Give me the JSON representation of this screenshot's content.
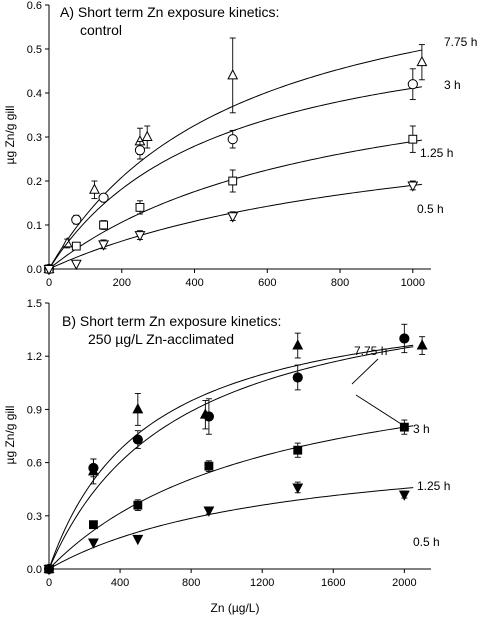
{
  "chart_data": [
    {
      "type": "scatter",
      "title": "A) Short term Zn exposure kinetics:",
      "subtitle": "control",
      "ylabel": "µg Zn/g gill",
      "xlabel": "",
      "xlim": [
        0,
        1050
      ],
      "ylim": [
        0,
        0.6
      ],
      "xticks": [
        0,
        200,
        400,
        600,
        800,
        1000
      ],
      "yticks": [
        0.0,
        0.1,
        0.2,
        0.3,
        0.4,
        0.5,
        0.6
      ],
      "marker_fill": "open",
      "grid": false,
      "legend": "none",
      "series": [
        {
          "name": "7.75 h",
          "marker": "triangle-up",
          "fit": {
            "vmax": 0.75,
            "km": 520
          },
          "points": [
            {
              "x": 0,
              "y": 0.0,
              "err": 0
            },
            {
              "x": 50,
              "y": 0.058,
              "err": 0.01
            },
            {
              "x": 125,
              "y": 0.18,
              "err": 0.02
            },
            {
              "x": 250,
              "y": 0.29,
              "err": 0.03
            },
            {
              "x": 270,
              "y": 0.3,
              "err": 0.025
            },
            {
              "x": 505,
              "y": 0.44,
              "err": 0.085
            },
            {
              "x": 1025,
              "y": 0.47,
              "err": 0.04
            }
          ]
        },
        {
          "name": "3 h",
          "marker": "circle",
          "fit": {
            "vmax": 0.6,
            "km": 460
          },
          "points": [
            {
              "x": 0,
              "y": 0.0,
              "err": 0
            },
            {
              "x": 75,
              "y": 0.112,
              "err": 0.01
            },
            {
              "x": 150,
              "y": 0.162,
              "err": 0
            },
            {
              "x": 250,
              "y": 0.27,
              "err": 0.02
            },
            {
              "x": 505,
              "y": 0.295,
              "err": 0.02
            },
            {
              "x": 1000,
              "y": 0.42,
              "err": 0.035
            }
          ]
        },
        {
          "name": "1.25 h",
          "marker": "square",
          "fit": {
            "vmax": 0.51,
            "km": 760
          },
          "points": [
            {
              "x": 0,
              "y": 0.0,
              "err": 0
            },
            {
              "x": 75,
              "y": 0.052,
              "err": 0.008
            },
            {
              "x": 150,
              "y": 0.1,
              "err": 0.01
            },
            {
              "x": 250,
              "y": 0.14,
              "err": 0.015
            },
            {
              "x": 505,
              "y": 0.2,
              "err": 0.025
            },
            {
              "x": 1000,
              "y": 0.295,
              "err": 0.03
            }
          ]
        },
        {
          "name": "0.5 h",
          "marker": "triangle-down",
          "fit": {
            "vmax": 0.38,
            "km": 1000
          },
          "points": [
            {
              "x": 0,
              "y": 0.0,
              "err": 0
            },
            {
              "x": 75,
              "y": 0.012,
              "err": 0
            },
            {
              "x": 150,
              "y": 0.056,
              "err": 0.01
            },
            {
              "x": 250,
              "y": 0.077,
              "err": 0.01
            },
            {
              "x": 505,
              "y": 0.12,
              "err": 0.01
            },
            {
              "x": 1000,
              "y": 0.19,
              "err": 0.01
            }
          ]
        }
      ]
    },
    {
      "type": "scatter",
      "title": "B) Short term Zn exposure kinetics:",
      "subtitle": "250 µg/L Zn-acclimated",
      "ylabel": "µg Zn/g gill",
      "xlabel": "Zn (µg/L)",
      "xlim": [
        0,
        2150
      ],
      "ylim": [
        0,
        1.5
      ],
      "xticks": [
        0,
        400,
        800,
        1200,
        1600,
        2000
      ],
      "yticks": [
        0.0,
        0.3,
        0.6,
        0.9,
        1.2,
        1.5
      ],
      "marker_fill": "filled",
      "grid": false,
      "legend": "none",
      "series": [
        {
          "name": "7.75 h",
          "marker": "triangle-up",
          "fit": {
            "vmax": 1.6,
            "km": 550
          },
          "points": [
            {
              "x": 0,
              "y": 0.0,
              "err": 0
            },
            {
              "x": 250,
              "y": 0.55,
              "err": 0.07
            },
            {
              "x": 500,
              "y": 0.9,
              "err": 0.09
            },
            {
              "x": 880,
              "y": 0.87,
              "err": 0.08
            },
            {
              "x": 1400,
              "y": 1.26,
              "err": 0.07
            },
            {
              "x": 2100,
              "y": 1.26,
              "err": 0.05
            }
          ]
        },
        {
          "name": "3 h",
          "marker": "circle",
          "fit": {
            "vmax": 1.7,
            "km": 730
          },
          "points": [
            {
              "x": 0,
              "y": 0.0,
              "err": 0
            },
            {
              "x": 250,
              "y": 0.57,
              "err": 0.05
            },
            {
              "x": 500,
              "y": 0.73,
              "err": 0.05
            },
            {
              "x": 900,
              "y": 0.86,
              "err": 0.1
            },
            {
              "x": 1400,
              "y": 1.08,
              "err": 0.07
            },
            {
              "x": 2000,
              "y": 1.3,
              "err": 0.08
            }
          ]
        },
        {
          "name": "1.25 h",
          "marker": "square",
          "fit": {
            "vmax": 1.3,
            "km": 1250
          },
          "points": [
            {
              "x": 0,
              "y": 0.0,
              "err": 0
            },
            {
              "x": 250,
              "y": 0.25,
              "err": 0
            },
            {
              "x": 500,
              "y": 0.36,
              "err": 0.03
            },
            {
              "x": 900,
              "y": 0.58,
              "err": 0.03
            },
            {
              "x": 1400,
              "y": 0.67,
              "err": 0.04
            },
            {
              "x": 2000,
              "y": 0.8,
              "err": 0.04
            }
          ]
        },
        {
          "name": "0.5 h",
          "marker": "triangle-down",
          "fit": {
            "vmax": 0.75,
            "km": 1300
          },
          "points": [
            {
              "x": 0,
              "y": 0.0,
              "err": 0
            },
            {
              "x": 250,
              "y": 0.15,
              "err": 0
            },
            {
              "x": 500,
              "y": 0.17,
              "err": 0
            },
            {
              "x": 900,
              "y": 0.33,
              "err": 0.02
            },
            {
              "x": 1400,
              "y": 0.46,
              "err": 0.03
            },
            {
              "x": 2000,
              "y": 0.42,
              "err": 0.02
            }
          ]
        }
      ]
    }
  ]
}
